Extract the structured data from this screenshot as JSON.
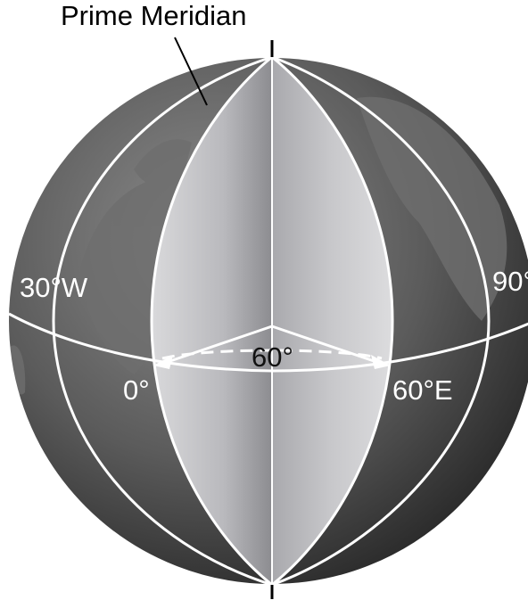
{
  "labels": {
    "prime_meridian": "Prime Meridian",
    "west_30": "30°W",
    "east_90": "90°",
    "angle": "60°",
    "zero": "0°",
    "east_60": "60°E"
  }
}
